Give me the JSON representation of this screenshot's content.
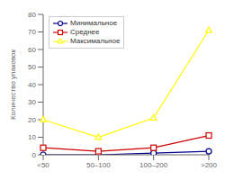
{
  "chart_data": {
    "type": "line",
    "categories": [
      "<50",
      "50–100",
      "100–200",
      ">200"
    ],
    "series": [
      {
        "name": "Минимальное",
        "color": "#00008B",
        "marker": "circle",
        "values": [
          0,
          0,
          1,
          2
        ]
      },
      {
        "name": "Среднее",
        "color": "#CC0000",
        "marker": "square",
        "values": [
          4,
          2,
          4,
          11
        ]
      },
      {
        "name": "Максимальное",
        "color": "#FFFF00",
        "marker": "triangle",
        "values": [
          20,
          10,
          21,
          71
        ]
      }
    ],
    "ylabel": "Количество упаковок",
    "ylim": [
      0,
      80
    ],
    "yticks": [
      0,
      10,
      20,
      30,
      40,
      50,
      60,
      70,
      80
    ],
    "grid": false,
    "legend": "upper left"
  }
}
